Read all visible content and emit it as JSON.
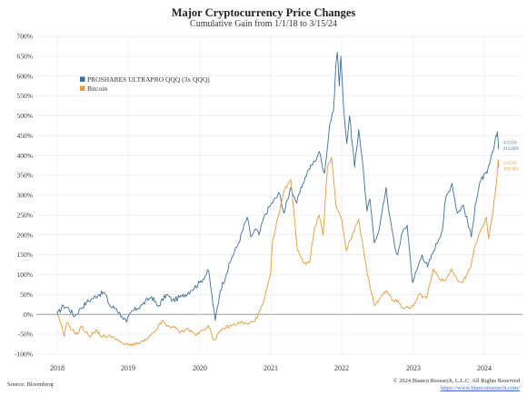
{
  "chart_data": {
    "type": "line",
    "title": "Major Cryptocurrency Price Changes",
    "subtitle": "Cumulative Gain from 1/1/18 to 3/15/24",
    "ylim": [
      -100,
      700
    ],
    "y_ticks": [
      "-100%",
      "-50%",
      "0%",
      "50%",
      "100%",
      "150%",
      "200%",
      "250%",
      "300%",
      "350%",
      "400%",
      "450%",
      "500%",
      "550%",
      "600%",
      "650%",
      "700%"
    ],
    "x_ticks": [
      "2018",
      "2019",
      "2020",
      "2021",
      "2022",
      "2023",
      "2024"
    ],
    "legend_position": "top-left",
    "grid": true,
    "series": [
      {
        "name": "PROSHARES ULTRAPRO QQQ (3x QQQ)",
        "color": "#3f6f9a",
        "end_labels": [
          "3/15/24",
          "415.84%"
        ],
        "points": [
          [
            "2018-01-01",
            0
          ],
          [
            "2018-02-01",
            22
          ],
          [
            "2018-03-01",
            15
          ],
          [
            "2018-04-01",
            -5
          ],
          [
            "2018-05-01",
            15
          ],
          [
            "2018-06-01",
            30
          ],
          [
            "2018-07-01",
            40
          ],
          [
            "2018-08-01",
            50
          ],
          [
            "2018-09-01",
            55
          ],
          [
            "2018-10-01",
            20
          ],
          [
            "2018-11-01",
            15
          ],
          [
            "2018-12-01",
            -5
          ],
          [
            "2018-12-24",
            -20
          ],
          [
            "2019-01-15",
            5
          ],
          [
            "2019-02-15",
            15
          ],
          [
            "2019-03-15",
            25
          ],
          [
            "2019-04-30",
            45
          ],
          [
            "2019-06-01",
            20
          ],
          [
            "2019-07-15",
            50
          ],
          [
            "2019-08-15",
            35
          ],
          [
            "2019-10-01",
            45
          ],
          [
            "2019-11-15",
            60
          ],
          [
            "2019-12-31",
            80
          ],
          [
            "2020-02-15",
            110
          ],
          [
            "2020-03-20",
            -15
          ],
          [
            "2020-04-15",
            60
          ],
          [
            "2020-05-15",
            100
          ],
          [
            "2020-06-15",
            145
          ],
          [
            "2020-07-15",
            175
          ],
          [
            "2020-09-01",
            245
          ],
          [
            "2020-09-20",
            195
          ],
          [
            "2020-10-15",
            215
          ],
          [
            "2020-11-01",
            200
          ],
          [
            "2020-12-01",
            250
          ],
          [
            "2020-12-31",
            275
          ],
          [
            "2021-02-15",
            305
          ],
          [
            "2021-03-10",
            255
          ],
          [
            "2021-04-15",
            320
          ],
          [
            "2021-05-15",
            280
          ],
          [
            "2021-06-15",
            330
          ],
          [
            "2021-07-15",
            365
          ],
          [
            "2021-08-15",
            385
          ],
          [
            "2021-09-07",
            410
          ],
          [
            "2021-10-05",
            355
          ],
          [
            "2021-11-01",
            480
          ],
          [
            "2021-11-20",
            510
          ],
          [
            "2021-12-01",
            620
          ],
          [
            "2021-12-10",
            660
          ],
          [
            "2021-12-20",
            575
          ],
          [
            "2021-12-28",
            650
          ],
          [
            "2022-01-10",
            530
          ],
          [
            "2022-01-27",
            430
          ],
          [
            "2022-02-10",
            500
          ],
          [
            "2022-03-08",
            370
          ],
          [
            "2022-03-29",
            465
          ],
          [
            "2022-04-15",
            395
          ],
          [
            "2022-05-10",
            260
          ],
          [
            "2022-05-25",
            290
          ],
          [
            "2022-06-16",
            180
          ],
          [
            "2022-07-15",
            225
          ],
          [
            "2022-08-15",
            320
          ],
          [
            "2022-09-01",
            250
          ],
          [
            "2022-09-30",
            165
          ],
          [
            "2022-10-13",
            150
          ],
          [
            "2022-11-01",
            200
          ],
          [
            "2022-11-30",
            225
          ],
          [
            "2022-12-28",
            80
          ],
          [
            "2023-01-31",
            130
          ],
          [
            "2023-02-15",
            150
          ],
          [
            "2023-03-15",
            120
          ],
          [
            "2023-04-15",
            160
          ],
          [
            "2023-05-31",
            215
          ],
          [
            "2023-06-15",
            290
          ],
          [
            "2023-07-19",
            330
          ],
          [
            "2023-08-15",
            255
          ],
          [
            "2023-09-15",
            275
          ],
          [
            "2023-10-26",
            195
          ],
          [
            "2023-11-15",
            275
          ],
          [
            "2023-12-15",
            340
          ],
          [
            "2024-01-15",
            355
          ],
          [
            "2024-02-15",
            410
          ],
          [
            "2024-03-01",
            450
          ],
          [
            "2024-03-08",
            460
          ],
          [
            "2024-03-15",
            415.84
          ]
        ]
      },
      {
        "name": "Bitcoin",
        "color": "#e89a3c",
        "end_labels": [
          "3/15/24",
          "369.06%"
        ],
        "points": [
          [
            "2018-01-01",
            0
          ],
          [
            "2018-01-20",
            -25
          ],
          [
            "2018-02-06",
            -55
          ],
          [
            "2018-02-20",
            -20
          ],
          [
            "2018-03-20",
            -40
          ],
          [
            "2018-04-15",
            -50
          ],
          [
            "2018-05-05",
            -30
          ],
          [
            "2018-06-15",
            -55
          ],
          [
            "2018-07-25",
            -40
          ],
          [
            "2018-08-15",
            -55
          ],
          [
            "2018-10-15",
            -55
          ],
          [
            "2018-11-20",
            -70
          ],
          [
            "2018-12-15",
            -76
          ],
          [
            "2019-02-15",
            -75
          ],
          [
            "2019-04-02",
            -65
          ],
          [
            "2019-05-15",
            -45
          ],
          [
            "2019-06-26",
            -15
          ],
          [
            "2019-07-15",
            -30
          ],
          [
            "2019-08-15",
            -30
          ],
          [
            "2019-09-25",
            -45
          ],
          [
            "2019-10-26",
            -35
          ],
          [
            "2019-12-15",
            -52
          ],
          [
            "2020-02-13",
            -28
          ],
          [
            "2020-03-13",
            -65
          ],
          [
            "2020-04-30",
            -35
          ],
          [
            "2020-06-01",
            -30
          ],
          [
            "2020-07-30",
            -20
          ],
          [
            "2020-09-05",
            -25
          ],
          [
            "2020-10-21",
            -10
          ],
          [
            "2020-11-25",
            30
          ],
          [
            "2020-12-31",
            100
          ],
          [
            "2021-01-08",
            175
          ],
          [
            "2021-02-21",
            275
          ],
          [
            "2021-03-13",
            315
          ],
          [
            "2021-04-14",
            340
          ],
          [
            "2021-05-19",
            160
          ],
          [
            "2021-06-22",
            130
          ],
          [
            "2021-07-20",
            130
          ],
          [
            "2021-08-15",
            220
          ],
          [
            "2021-09-07",
            250
          ],
          [
            "2021-09-28",
            200
          ],
          [
            "2021-10-20",
            370
          ],
          [
            "2021-11-10",
            395
          ],
          [
            "2021-12-04",
            270
          ],
          [
            "2022-01-01",
            240
          ],
          [
            "2022-01-24",
            160
          ],
          [
            "2022-03-28",
            240
          ],
          [
            "2022-05-12",
            100
          ],
          [
            "2022-06-18",
            22
          ],
          [
            "2022-07-15",
            40
          ],
          [
            "2022-08-15",
            60
          ],
          [
            "2022-09-15",
            35
          ],
          [
            "2022-10-15",
            35
          ],
          [
            "2022-11-09",
            15
          ],
          [
            "2022-12-31",
            20
          ],
          [
            "2023-01-31",
            50
          ],
          [
            "2023-03-10",
            40
          ],
          [
            "2023-04-14",
            115
          ],
          [
            "2023-05-15",
            90
          ],
          [
            "2023-06-15",
            85
          ],
          [
            "2023-07-15",
            115
          ],
          [
            "2023-08-17",
            85
          ],
          [
            "2023-09-11",
            80
          ],
          [
            "2023-10-24",
            120
          ],
          [
            "2023-11-15",
            175
          ],
          [
            "2023-12-08",
            205
          ],
          [
            "2024-01-11",
            245
          ],
          [
            "2024-01-23",
            190
          ],
          [
            "2024-02-15",
            260
          ],
          [
            "2024-03-05",
            340
          ],
          [
            "2024-03-13",
            390
          ],
          [
            "2024-03-15",
            369.06
          ]
        ]
      }
    ],
    "source": "Source: Bloomberg",
    "copyright": "© 2024 Bianco Research, L.L.C. All Rights Reserved",
    "url": "https://www.biancoresearch.com/"
  }
}
